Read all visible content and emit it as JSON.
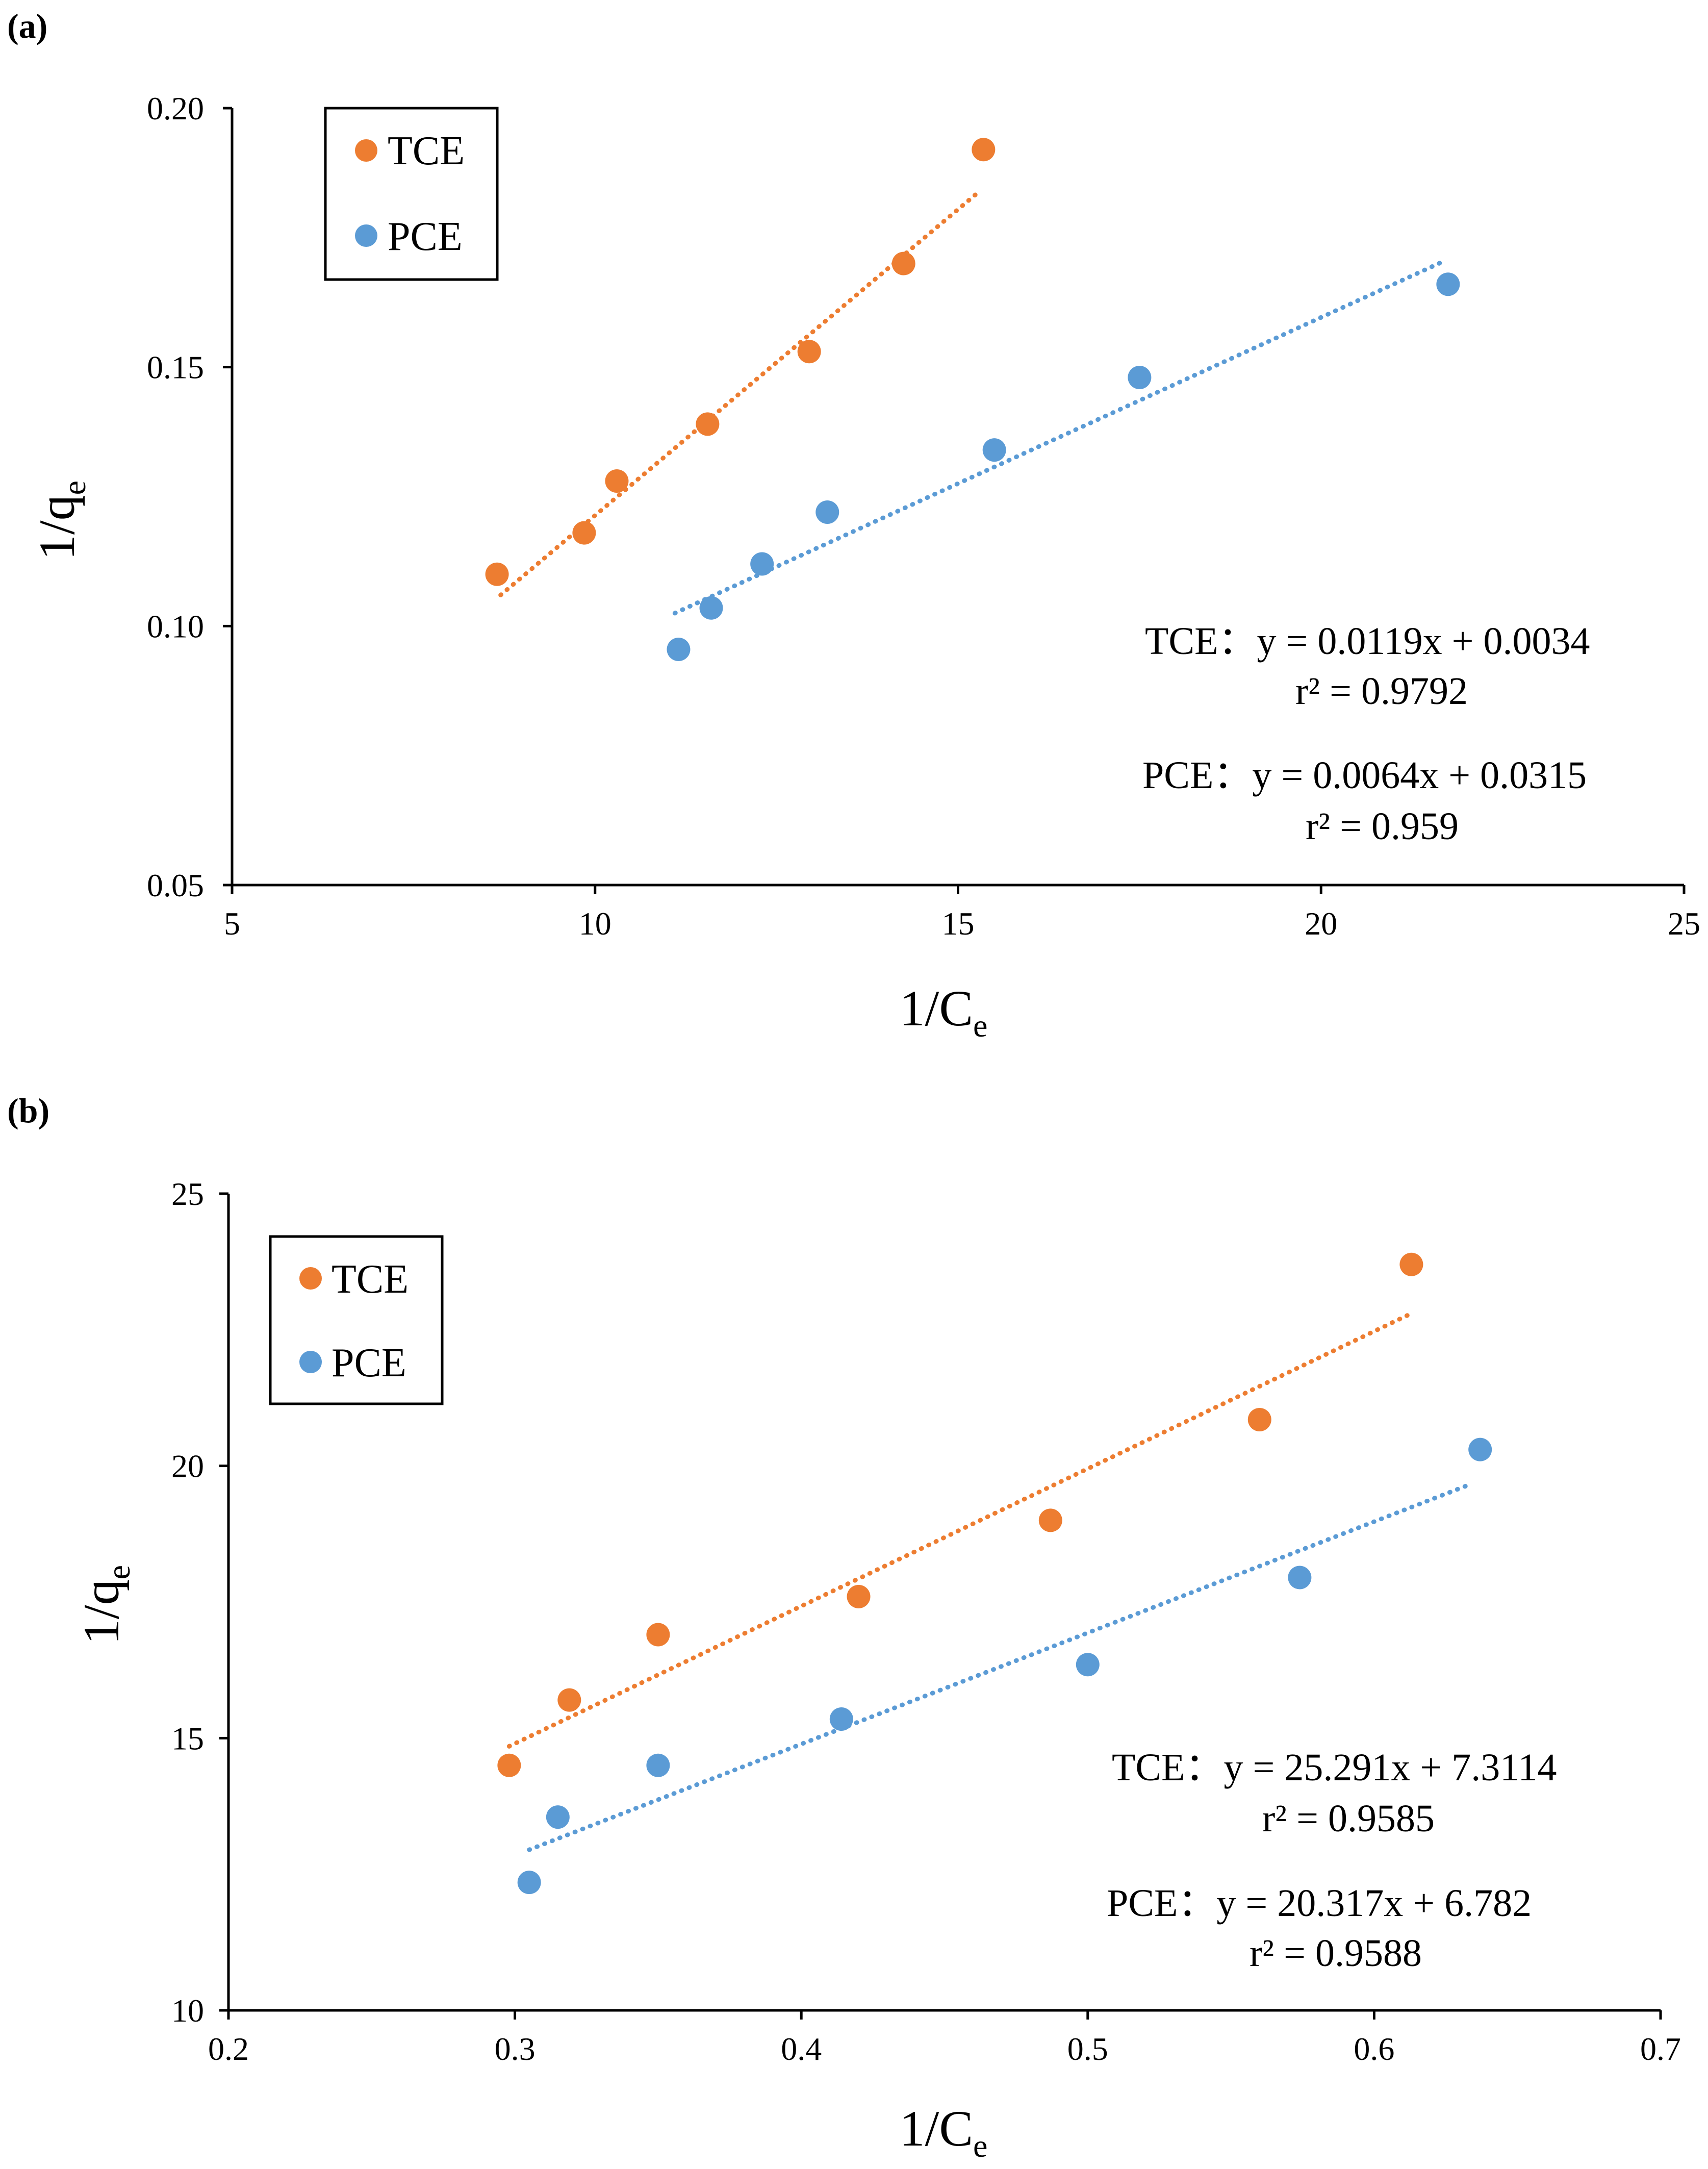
{
  "chart_data": [
    {
      "id": "a",
      "panel_label": "(a)",
      "type": "scatter",
      "xlabel": "1/C",
      "xlabel_sub": "e",
      "ylabel": "1/q",
      "ylabel_sub": "e",
      "xlim": [
        5,
        25
      ],
      "ylim": [
        0.05,
        0.2
      ],
      "xticks": [
        5,
        10,
        15,
        20,
        25
      ],
      "xtick_labels": [
        "5",
        "10",
        "15",
        "20",
        "25"
      ],
      "yticks": [
        0.05,
        0.1,
        0.15,
        0.2
      ],
      "ytick_labels": [
        "0.05",
        "0.10",
        "0.15",
        "0.20"
      ],
      "legend": {
        "position": "top-left",
        "boxed": true
      },
      "grid": false,
      "series": [
        {
          "name": "TCE",
          "color": "#ED7D31",
          "x": [
            8.65,
            9.85,
            10.3,
            11.55,
            12.95,
            14.25,
            15.35
          ],
          "y": [
            0.11,
            0.118,
            0.128,
            0.139,
            0.153,
            0.17,
            0.192
          ],
          "trendline": {
            "style": "dotted",
            "x": [
              8.7,
              15.3
            ],
            "y": [
              0.106,
              0.184
            ]
          }
        },
        {
          "name": "PCE",
          "color": "#5B9BD5",
          "x": [
            11.15,
            11.6,
            12.3,
            13.2,
            15.5,
            17.5,
            21.75
          ],
          "y": [
            0.0955,
            0.1035,
            0.112,
            0.122,
            0.134,
            0.148,
            0.166
          ],
          "trendline": {
            "style": "dotted",
            "x": [
              11.1,
              21.7
            ],
            "y": [
              0.1025,
              0.1705
            ]
          }
        }
      ],
      "annotations": [
        {
          "id": "tce-eq",
          "text": "TCE：y = 0.0119x + 0.0034"
        },
        {
          "id": "tce-r2",
          "text": "r² = 0.9792"
        },
        {
          "id": "pce-eq",
          "text": "PCE：y = 0.0064x + 0.0315"
        },
        {
          "id": "pce-r2",
          "text": "r² = 0.959"
        }
      ]
    },
    {
      "id": "b",
      "panel_label": "(b)",
      "type": "scatter",
      "xlabel": "1/C",
      "xlabel_sub": "e",
      "ylabel": "1/q",
      "ylabel_sub": "e",
      "xlim": [
        0.2,
        0.7
      ],
      "ylim": [
        10,
        25
      ],
      "xticks": [
        0.2,
        0.3,
        0.4,
        0.5,
        0.6,
        0.7
      ],
      "xtick_labels": [
        "0.2",
        "0.3",
        "0.4",
        "0.5",
        "0.6",
        "0.7"
      ],
      "yticks": [
        10,
        15,
        20,
        25
      ],
      "ytick_labels": [
        "10",
        "15",
        "20",
        "25"
      ],
      "legend": {
        "position": "top-left",
        "boxed": true
      },
      "grid": false,
      "series": [
        {
          "name": "TCE",
          "color": "#ED7D31",
          "x": [
            0.298,
            0.319,
            0.35,
            0.42,
            0.487,
            0.56,
            0.613
          ],
          "y": [
            14.5,
            15.7,
            16.9,
            17.6,
            19.0,
            20.85,
            23.7
          ],
          "trendline": {
            "style": "dotted",
            "x": [
              0.298,
              0.613
            ],
            "y": [
              14.85,
              22.8
            ]
          }
        },
        {
          "name": "PCE",
          "color": "#5B9BD5",
          "x": [
            0.305,
            0.315,
            0.35,
            0.414,
            0.5,
            0.574,
            0.637
          ],
          "y": [
            12.35,
            13.55,
            14.5,
            15.35,
            16.35,
            17.95,
            20.3
          ],
          "trendline": {
            "style": "dotted",
            "x": [
              0.305,
              0.633
            ],
            "y": [
              12.95,
              19.65
            ]
          }
        }
      ],
      "annotations": [
        {
          "id": "tce-eq",
          "text": "TCE：y = 25.291x + 7.3114"
        },
        {
          "id": "tce-r2",
          "text": "r²  = 0.9585"
        },
        {
          "id": "pce-eq",
          "text": "PCE：y = 20.317x + 6.782"
        },
        {
          "id": "pce-r2",
          "text": "r² = 0.9588"
        }
      ]
    }
  ]
}
